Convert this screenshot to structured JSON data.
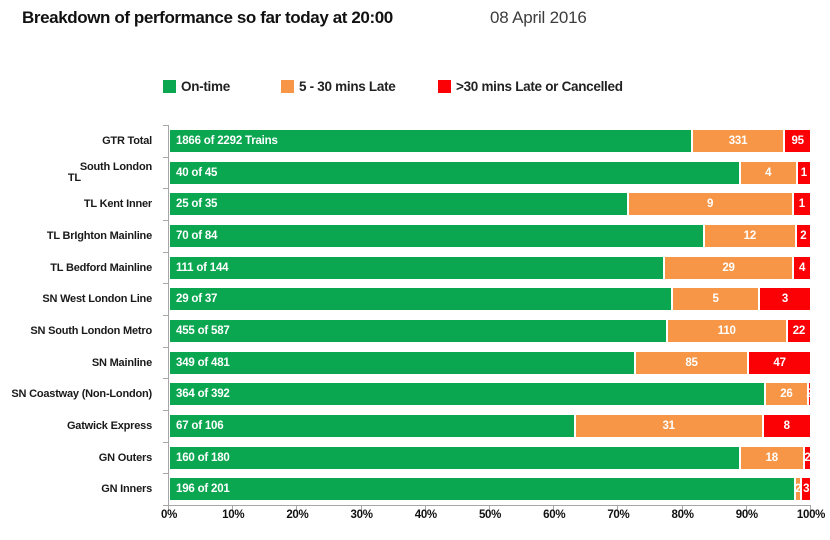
{
  "header": {
    "title": "Breakdown of performance so far today at 20:00",
    "date": "08 April 2016"
  },
  "legend": {
    "items": [
      {
        "label": "On-time",
        "color": "#0aa650"
      },
      {
        "label": "5 - 30 mins Late",
        "color": "#f69646"
      },
      {
        "label": ">30 mins Late or Cancelled",
        "color": "#fb0005"
      }
    ]
  },
  "chart_data": {
    "type": "bar",
    "variant": "horizontal-stacked-100percent",
    "title": "Breakdown of performance so far today at 20:00",
    "xlim": [
      0,
      100
    ],
    "x_ticks": [
      "0%",
      "10%",
      "20%",
      "30%",
      "40%",
      "50%",
      "60%",
      "70%",
      "80%",
      "90%",
      "100%"
    ],
    "grid": false,
    "legend_position": "top",
    "series_names": [
      "On-time",
      "5 - 30 mins Late",
      ">30 mins Late or Cancelled"
    ],
    "colors": {
      "on_time": "#0aa650",
      "late": "#f69646",
      "cancelled": "#fb0005"
    },
    "rows": [
      {
        "label": "GTR Total",
        "on_time": 1866,
        "late": 331,
        "cancelled": 95,
        "total": 2292,
        "bar_label": "1866 of 2292 Trains"
      },
      {
        "label": "TL South London",
        "label_lines": [
          "South London",
          "TL"
        ],
        "on_time": 40,
        "late": 4,
        "cancelled": 1,
        "total": 45,
        "bar_label": "40 of 45"
      },
      {
        "label": "TL Kent Inner",
        "on_time": 25,
        "late": 9,
        "cancelled": 1,
        "total": 35,
        "bar_label": "25 of 35"
      },
      {
        "label": "TL BrIghton Mainline",
        "on_time": 70,
        "late": 12,
        "cancelled": 2,
        "total": 84,
        "bar_label": "70 of 84"
      },
      {
        "label": "TL Bedford Mainline",
        "on_time": 111,
        "late": 29,
        "cancelled": 4,
        "total": 144,
        "bar_label": "111 of 144"
      },
      {
        "label": "SN West London Line",
        "on_time": 29,
        "late": 5,
        "cancelled": 3,
        "total": 37,
        "bar_label": "29 of 37"
      },
      {
        "label": "SN South London Metro",
        "on_time": 455,
        "late": 110,
        "cancelled": 22,
        "total": 587,
        "bar_label": "455 of 587"
      },
      {
        "label": "SN Mainline",
        "on_time": 349,
        "late": 85,
        "cancelled": 47,
        "total": 481,
        "bar_label": "349 of 481"
      },
      {
        "label": "SN Coastway (Non-London)",
        "on_time": 364,
        "late": 26,
        "cancelled": 2,
        "total": 392,
        "bar_label": "364 of 392"
      },
      {
        "label": "Gatwick Express",
        "on_time": 67,
        "late": 31,
        "cancelled": 8,
        "total": 106,
        "bar_label": "67 of 106"
      },
      {
        "label": "GN Outers",
        "on_time": 160,
        "late": 18,
        "cancelled": 2,
        "total": 180,
        "bar_label": "160 of 180"
      },
      {
        "label": "GN Inners",
        "on_time": 196,
        "late": 2,
        "cancelled": 3,
        "total": 201,
        "bar_label": "196 of 201"
      }
    ]
  }
}
